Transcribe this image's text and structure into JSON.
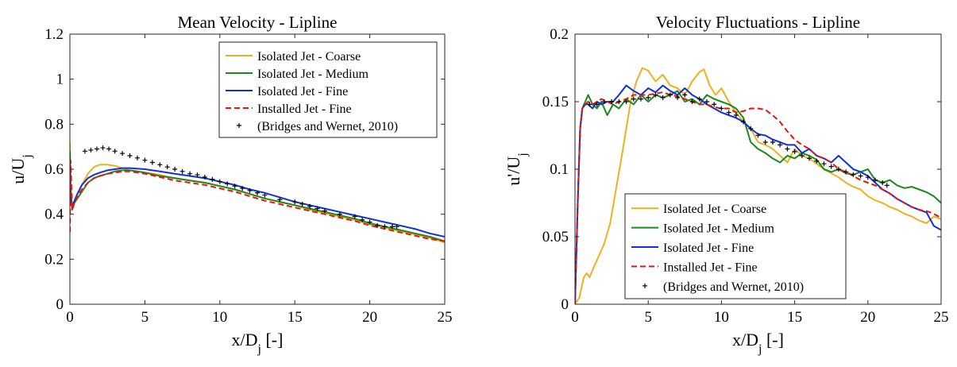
{
  "chart_data": [
    {
      "type": "line",
      "title": "Mean Velocity - Lipline",
      "xlabel": "x/D",
      "xlabel_sub": "j",
      "xlabel_suffix": " [-]",
      "ylabel": "u/U",
      "ylabel_sub": "j",
      "xlim": [
        0,
        25
      ],
      "ylim": [
        0,
        1.2
      ],
      "xticks": [
        0,
        5,
        10,
        15,
        20,
        25
      ],
      "yticks": [
        0,
        0.2,
        0.4,
        0.6,
        0.8,
        1,
        1.2
      ],
      "xtick_labels": [
        "0",
        "5",
        "10",
        "15",
        "20",
        "25"
      ],
      "ytick_labels": [
        "0",
        "0.2",
        "0.4",
        "0.6",
        "0.8",
        "1",
        "1.2"
      ],
      "grid": false,
      "legend_position": "top-right",
      "series": [
        {
          "name": "Isolated Jet - Coarse",
          "color": "#EDB120",
          "style": "solid",
          "x": [
            0,
            0.05,
            0.15,
            0.3,
            0.5,
            0.8,
            1.2,
            1.6,
            2.0,
            2.5,
            3.0,
            3.5,
            4.0,
            5,
            6,
            7,
            8,
            9,
            10,
            11,
            12,
            13,
            14,
            15,
            16,
            17,
            18,
            19,
            20,
            21,
            22,
            23,
            24,
            25
          ],
          "y": [
            0.72,
            0.55,
            0.42,
            0.45,
            0.49,
            0.53,
            0.58,
            0.61,
            0.62,
            0.62,
            0.615,
            0.605,
            0.595,
            0.585,
            0.575,
            0.56,
            0.55,
            0.54,
            0.525,
            0.51,
            0.49,
            0.47,
            0.455,
            0.44,
            0.42,
            0.405,
            0.39,
            0.375,
            0.355,
            0.34,
            0.325,
            0.31,
            0.295,
            0.275
          ]
        },
        {
          "name": "Isolated Jet - Medium",
          "color": "#1A8A1A",
          "style": "solid",
          "x": [
            0,
            0.05,
            0.15,
            0.3,
            0.5,
            0.8,
            1.2,
            1.6,
            2.0,
            2.5,
            3.0,
            3.5,
            4.0,
            5,
            6,
            7,
            8,
            9,
            10,
            11,
            12,
            13,
            14,
            15,
            16,
            17,
            18,
            19,
            20,
            21,
            22,
            23,
            24,
            25
          ],
          "y": [
            0.68,
            0.5,
            0.42,
            0.45,
            0.47,
            0.5,
            0.54,
            0.56,
            0.57,
            0.58,
            0.59,
            0.595,
            0.595,
            0.585,
            0.57,
            0.56,
            0.55,
            0.54,
            0.525,
            0.51,
            0.49,
            0.47,
            0.455,
            0.44,
            0.425,
            0.41,
            0.395,
            0.38,
            0.36,
            0.345,
            0.33,
            0.315,
            0.3,
            0.28
          ]
        },
        {
          "name": "Isolated Jet - Fine",
          "color": "#1030E0",
          "style": "solid",
          "x": [
            0,
            0.05,
            0.15,
            0.3,
            0.5,
            0.8,
            1.2,
            1.6,
            2.0,
            2.5,
            3.0,
            3.5,
            4.0,
            5,
            6,
            7,
            8,
            9,
            10,
            11,
            12,
            13,
            14,
            15,
            16,
            17,
            18,
            19,
            20,
            21,
            22,
            23,
            24,
            25
          ],
          "y": [
            0.62,
            0.48,
            0.43,
            0.46,
            0.49,
            0.53,
            0.56,
            0.575,
            0.585,
            0.595,
            0.6,
            0.605,
            0.605,
            0.6,
            0.59,
            0.58,
            0.57,
            0.56,
            0.545,
            0.53,
            0.51,
            0.495,
            0.475,
            0.455,
            0.44,
            0.425,
            0.41,
            0.395,
            0.38,
            0.365,
            0.35,
            0.335,
            0.315,
            0.3
          ]
        },
        {
          "name": "Installed Jet - Fine",
          "color": "#EE1111",
          "style": "dashed",
          "x": [
            0,
            0.05,
            0.15,
            0.3,
            0.5,
            0.8,
            1.2,
            1.6,
            2.0,
            2.5,
            3.0,
            3.5,
            4.0,
            5,
            6,
            7,
            8,
            9,
            10,
            11,
            12,
            13,
            14,
            15,
            16,
            17,
            18,
            19,
            20,
            21,
            22,
            23,
            24,
            25
          ],
          "y": [
            0.32,
            0.64,
            0.42,
            0.45,
            0.48,
            0.51,
            0.54,
            0.56,
            0.57,
            0.58,
            0.585,
            0.59,
            0.59,
            0.58,
            0.565,
            0.55,
            0.54,
            0.53,
            0.515,
            0.5,
            0.48,
            0.46,
            0.445,
            0.43,
            0.415,
            0.4,
            0.385,
            0.37,
            0.35,
            0.335,
            0.32,
            0.305,
            0.29,
            0.28
          ]
        },
        {
          "name": "(Bridges and Wernet, 2010)",
          "color": "#000000",
          "style": "marker",
          "x": [
            1.0,
            1.4,
            1.8,
            2.2,
            2.6,
            3.0,
            3.5,
            4.0,
            4.5,
            5.0,
            5.5,
            6.0,
            6.5,
            7.0,
            7.5,
            8.0,
            8.5,
            9.0,
            9.5,
            10.0,
            10.5,
            11.0,
            11.5,
            12.0,
            12.5,
            13.0,
            14.0,
            15.0,
            15.5,
            16.0,
            16.5,
            17.0,
            18.0,
            19.0,
            19.5,
            20.0,
            20.5,
            21.0,
            21.5,
            21.8
          ],
          "y": [
            0.68,
            0.685,
            0.69,
            0.695,
            0.69,
            0.68,
            0.67,
            0.66,
            0.65,
            0.64,
            0.63,
            0.62,
            0.61,
            0.6,
            0.59,
            0.58,
            0.575,
            0.565,
            0.555,
            0.545,
            0.535,
            0.525,
            0.515,
            0.505,
            0.495,
            0.485,
            0.465,
            0.455,
            0.445,
            0.435,
            0.425,
            0.415,
            0.4,
            0.39,
            0.375,
            0.365,
            0.35,
            0.345,
            0.345,
            0.345
          ]
        }
      ]
    },
    {
      "type": "line",
      "title": "Velocity Fluctuations - Lipline",
      "xlabel": "x/D",
      "xlabel_sub": "j",
      "xlabel_suffix": " [-]",
      "ylabel": "u'/U",
      "ylabel_sub": "j",
      "xlim": [
        0,
        25
      ],
      "ylim": [
        0,
        0.2
      ],
      "xticks": [
        0,
        5,
        10,
        15,
        20,
        25
      ],
      "yticks": [
        0,
        0.05,
        0.1,
        0.15,
        0.2
      ],
      "xtick_labels": [
        "0",
        "5",
        "10",
        "15",
        "20",
        "25"
      ],
      "ytick_labels": [
        "0",
        "0.05",
        "0.1",
        "0.15",
        "0.2"
      ],
      "grid": false,
      "legend_position": "bottom-left",
      "series": [
        {
          "name": "Isolated Jet - Coarse",
          "color": "#EDB120",
          "style": "solid",
          "x": [
            0,
            0.3,
            0.6,
            0.8,
            1.0,
            1.3,
            1.6,
            2.0,
            2.4,
            2.8,
            3.2,
            3.5,
            3.8,
            4.2,
            4.6,
            5.0,
            5.5,
            6.0,
            6.5,
            7.0,
            7.5,
            8.0,
            8.5,
            8.8,
            9.2,
            9.6,
            10.0,
            10.5,
            11.0,
            11.5,
            12.0,
            12.5,
            13.0,
            13.5,
            14.0,
            14.5,
            15.0,
            15.5,
            16.0,
            16.5,
            17.0,
            17.5,
            18.0,
            18.5,
            19.0,
            19.5,
            20.0,
            20.5,
            21.0,
            21.5,
            22.0,
            22.5,
            23.0,
            23.5,
            24.0,
            24.5,
            25.0
          ],
          "y": [
            0,
            0.005,
            0.02,
            0.023,
            0.02,
            0.028,
            0.035,
            0.045,
            0.06,
            0.085,
            0.11,
            0.13,
            0.15,
            0.165,
            0.175,
            0.173,
            0.165,
            0.17,
            0.162,
            0.16,
            0.155,
            0.165,
            0.172,
            0.174,
            0.162,
            0.155,
            0.16,
            0.15,
            0.142,
            0.135,
            0.13,
            0.12,
            0.118,
            0.115,
            0.11,
            0.105,
            0.115,
            0.11,
            0.108,
            0.104,
            0.1,
            0.097,
            0.094,
            0.09,
            0.087,
            0.085,
            0.08,
            0.077,
            0.075,
            0.072,
            0.07,
            0.067,
            0.065,
            0.062,
            0.06,
            0.065,
            0.063
          ]
        },
        {
          "name": "Isolated Jet - Medium",
          "color": "#1A8A1A",
          "style": "solid",
          "x": [
            0,
            0.2,
            0.35,
            0.5,
            0.7,
            0.9,
            1.2,
            1.5,
            1.8,
            2.2,
            2.6,
            3.0,
            3.5,
            4.0,
            4.5,
            5.0,
            5.5,
            6.0,
            6.5,
            7.0,
            7.5,
            8.0,
            8.5,
            9.0,
            9.5,
            10.0,
            10.5,
            11.0,
            11.5,
            12.0,
            12.5,
            13.0,
            13.5,
            14.0,
            14.5,
            15.0,
            15.5,
            16.0,
            16.5,
            17.0,
            17.5,
            18.0,
            18.5,
            19.0,
            19.5,
            20.0,
            20.5,
            21.0,
            21.5,
            22.0,
            22.5,
            23.0,
            23.5,
            24.0,
            24.5,
            25.0
          ],
          "y": [
            0,
            0.08,
            0.13,
            0.145,
            0.15,
            0.155,
            0.148,
            0.145,
            0.15,
            0.14,
            0.148,
            0.145,
            0.152,
            0.148,
            0.155,
            0.15,
            0.155,
            0.153,
            0.155,
            0.158,
            0.15,
            0.152,
            0.148,
            0.155,
            0.152,
            0.15,
            0.148,
            0.145,
            0.138,
            0.12,
            0.115,
            0.112,
            0.108,
            0.105,
            0.11,
            0.108,
            0.112,
            0.11,
            0.107,
            0.1,
            0.098,
            0.1,
            0.097,
            0.096,
            0.098,
            0.1,
            0.092,
            0.09,
            0.092,
            0.088,
            0.086,
            0.087,
            0.085,
            0.083,
            0.08,
            0.075
          ]
        },
        {
          "name": "Isolated Jet - Fine",
          "color": "#1030E0",
          "style": "solid",
          "x": [
            0,
            0.2,
            0.35,
            0.5,
            0.7,
            0.9,
            1.2,
            1.5,
            1.8,
            2.2,
            2.6,
            3.0,
            3.5,
            4.0,
            4.5,
            5.0,
            5.5,
            6.0,
            6.5,
            7.0,
            7.5,
            8.0,
            8.5,
            9.0,
            9.5,
            10.0,
            10.5,
            11.0,
            11.5,
            12.0,
            12.5,
            13.0,
            13.5,
            14.0,
            14.5,
            15.0,
            15.5,
            16.0,
            16.5,
            17.0,
            17.5,
            18.0,
            18.5,
            19.0,
            19.5,
            20.0,
            20.5,
            21.0,
            21.5,
            22.0,
            22.5,
            23.0,
            23.5,
            24.0,
            24.5,
            25.0
          ],
          "y": [
            0,
            0.08,
            0.13,
            0.145,
            0.148,
            0.148,
            0.145,
            0.15,
            0.148,
            0.15,
            0.15,
            0.155,
            0.162,
            0.158,
            0.155,
            0.16,
            0.157,
            0.162,
            0.158,
            0.155,
            0.16,
            0.155,
            0.152,
            0.148,
            0.145,
            0.142,
            0.14,
            0.138,
            0.135,
            0.13,
            0.126,
            0.125,
            0.122,
            0.12,
            0.118,
            0.118,
            0.112,
            0.115,
            0.11,
            0.108,
            0.105,
            0.11,
            0.105,
            0.1,
            0.098,
            0.095,
            0.09,
            0.085,
            0.082,
            0.078,
            0.075,
            0.072,
            0.07,
            0.068,
            0.058,
            0.055
          ]
        },
        {
          "name": "Installed Jet - Fine",
          "color": "#EE1111",
          "style": "dashed",
          "x": [
            0,
            0.2,
            0.35,
            0.5,
            0.7,
            0.9,
            1.2,
            1.5,
            1.8,
            2.2,
            2.6,
            3.0,
            3.5,
            4.0,
            4.5,
            5.0,
            5.5,
            6.0,
            6.5,
            7.0,
            7.5,
            8.0,
            8.5,
            9.0,
            9.5,
            10.0,
            10.5,
            11.0,
            11.5,
            12.0,
            12.5,
            13.0,
            13.5,
            14.0,
            14.5,
            15.0,
            15.5,
            16.0,
            16.5,
            17.0,
            17.5,
            18.0,
            18.5,
            19.0,
            19.5,
            20.0,
            20.5,
            21.0,
            21.5,
            22.0,
            22.5,
            23.0,
            23.5,
            24.0,
            24.5,
            25.0
          ],
          "y": [
            0,
            0.08,
            0.13,
            0.145,
            0.148,
            0.15,
            0.148,
            0.15,
            0.152,
            0.15,
            0.148,
            0.15,
            0.152,
            0.155,
            0.155,
            0.155,
            0.156,
            0.157,
            0.155,
            0.154,
            0.152,
            0.15,
            0.148,
            0.148,
            0.146,
            0.145,
            0.145,
            0.142,
            0.143,
            0.145,
            0.145,
            0.144,
            0.14,
            0.135,
            0.128,
            0.122,
            0.118,
            0.115,
            0.11,
            0.108,
            0.105,
            0.1,
            0.098,
            0.095,
            0.092,
            0.09,
            0.088,
            0.085,
            0.082,
            0.078,
            0.075,
            0.072,
            0.07,
            0.069,
            0.067,
            0.064
          ]
        },
        {
          "name": "(Bridges and Wernet, 2010)",
          "color": "#000000",
          "style": "marker",
          "x": [
            1.0,
            1.5,
            2.0,
            2.5,
            3.0,
            3.5,
            4.0,
            4.5,
            5.0,
            5.5,
            6.0,
            6.5,
            7.0,
            7.5,
            8.0,
            8.5,
            9.0,
            9.5,
            10.0,
            10.5,
            11.0,
            11.5,
            12.0,
            12.5,
            13.0,
            13.5,
            14.0,
            14.5,
            15.0,
            15.5,
            16.0,
            16.5,
            17.0,
            17.5,
            18.0,
            18.5,
            19.0,
            19.5,
            20.0,
            20.5,
            21.0,
            21.3
          ],
          "y": [
            0.148,
            0.148,
            0.15,
            0.15,
            0.15,
            0.15,
            0.152,
            0.152,
            0.153,
            0.155,
            0.153,
            0.155,
            0.153,
            0.155,
            0.15,
            0.152,
            0.15,
            0.148,
            0.145,
            0.142,
            0.14,
            0.135,
            0.13,
            0.125,
            0.12,
            0.12,
            0.118,
            0.115,
            0.113,
            0.11,
            0.108,
            0.106,
            0.104,
            0.102,
            0.1,
            0.098,
            0.096,
            0.095,
            0.094,
            0.092,
            0.09,
            0.088
          ]
        }
      ]
    }
  ]
}
